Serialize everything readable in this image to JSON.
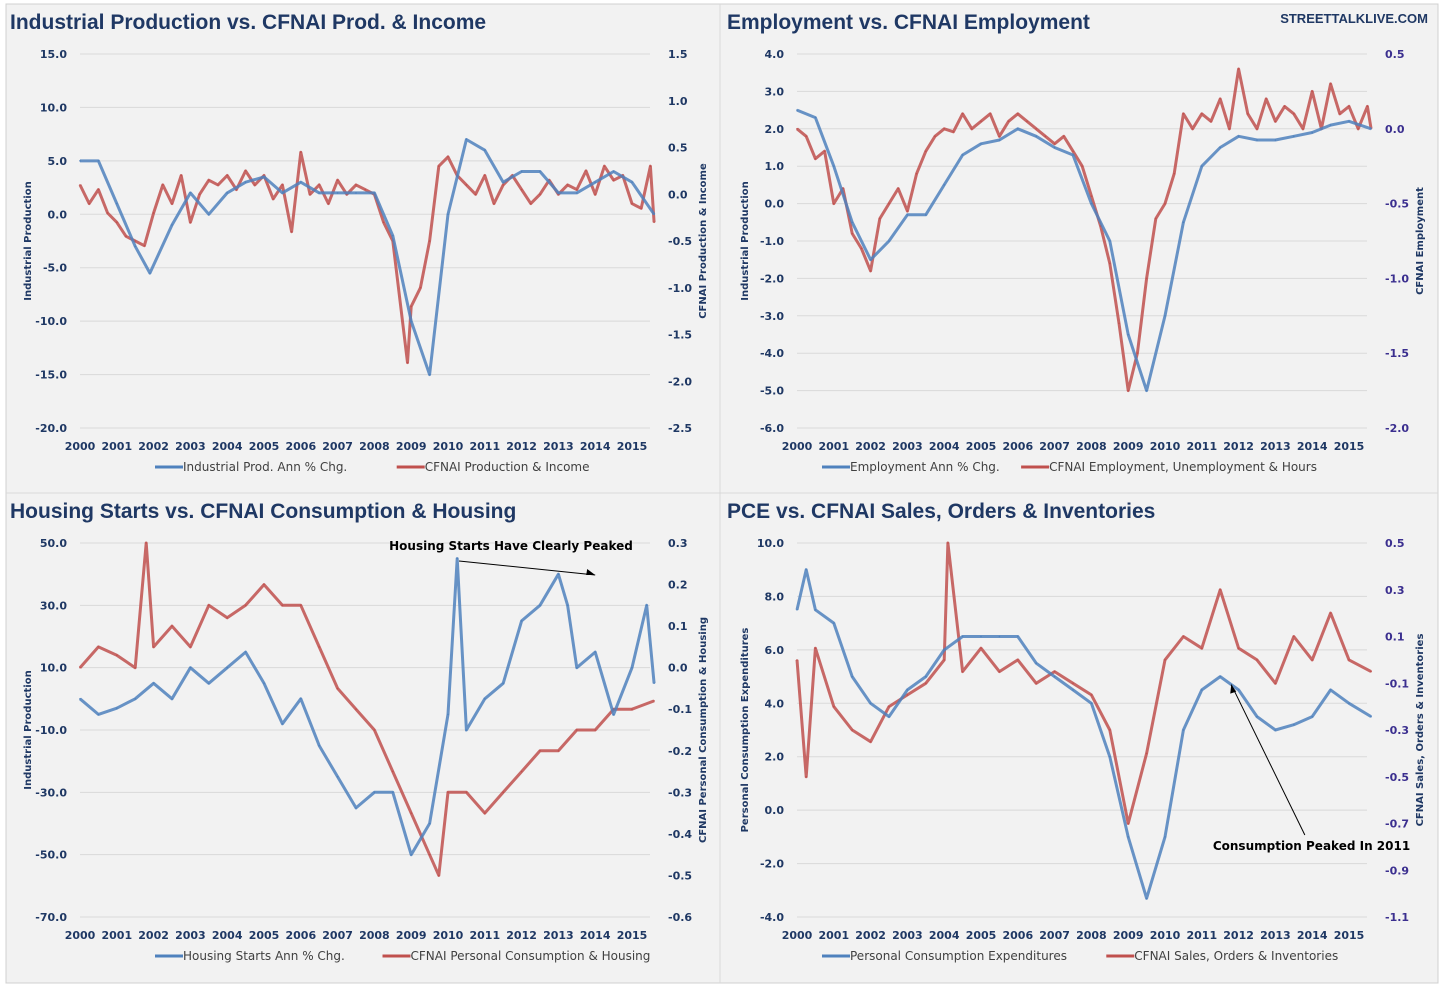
{
  "watermark": "STREETTALKLIVE.COM",
  "colors": {
    "primary_series": "#4f81bd",
    "secondary_series": "#c0504d",
    "background": "#f2f2f2"
  },
  "chart_data": [
    {
      "type": "line",
      "title": "Industrial Production vs. CFNAI Prod. & Income",
      "ylabel": "Industrial Production",
      "ylabel_right": "CFNAI Production & Income",
      "xticks": [
        "2000",
        "2001",
        "2002",
        "2003",
        "2004",
        "2005",
        "2006",
        "2007",
        "2008",
        "2009",
        "2010",
        "2011",
        "2012",
        "2013",
        "2014",
        "2015"
      ],
      "ylim": [
        -20,
        15
      ],
      "yticks": [
        "15.0",
        "10.0",
        "5.0",
        "0.0",
        "-5.0",
        "-10.0",
        "-15.0",
        "-20.0"
      ],
      "ylim_right": [
        -2.5,
        1.5
      ],
      "yticks_right": [
        "1.5",
        "1.0",
        "0.5",
        "0.0",
        "-0.5",
        "-1.0",
        "-1.5",
        "-2.0",
        "-2.5"
      ],
      "grid": true,
      "legend": "bottom",
      "series": [
        {
          "name": "Industrial Prod. Ann % Chg.",
          "axis": "left",
          "x": [
            2000,
            2000.5,
            2001,
            2001.5,
            2001.9,
            2002.5,
            2003,
            2003.5,
            2004,
            2004.5,
            2005,
            2005.5,
            2006,
            2006.5,
            2007,
            2007.5,
            2008,
            2008.5,
            2009,
            2009.5,
            2010,
            2010.5,
            2011,
            2011.5,
            2012,
            2012.5,
            2013,
            2013.5,
            2014,
            2014.5,
            2015,
            2015.6
          ],
          "y": [
            5,
            5,
            1,
            -3,
            -5.5,
            -1,
            2,
            0,
            2,
            3,
            3.5,
            2,
            3,
            2,
            2,
            2,
            2,
            -2,
            -10,
            -15,
            0,
            7,
            6,
            3,
            4,
            4,
            2,
            2,
            3,
            4,
            3,
            0
          ]
        },
        {
          "name": "CFNAI Production & Income",
          "axis": "right",
          "x": [
            2000,
            2000.25,
            2000.5,
            2000.75,
            2001,
            2001.25,
            2001.5,
            2001.75,
            2002,
            2002.25,
            2002.5,
            2002.75,
            2003,
            2003.25,
            2003.5,
            2003.75,
            2004,
            2004.25,
            2004.5,
            2004.75,
            2005,
            2005.25,
            2005.5,
            2005.75,
            2006,
            2006.25,
            2006.5,
            2006.75,
            2007,
            2007.25,
            2007.5,
            2007.75,
            2008,
            2008.25,
            2008.5,
            2008.9,
            2009,
            2009.25,
            2009.5,
            2009.75,
            2010,
            2010.25,
            2010.5,
            2010.75,
            2011,
            2011.25,
            2011.5,
            2011.75,
            2012,
            2012.25,
            2012.5,
            2012.75,
            2013,
            2013.25,
            2013.5,
            2013.75,
            2014,
            2014.25,
            2014.5,
            2014.75,
            2015,
            2015.25,
            2015.5,
            2015.6
          ],
          "y": [
            0.1,
            -0.1,
            0.05,
            -0.2,
            -0.3,
            -0.45,
            -0.5,
            -0.55,
            -0.2,
            0.1,
            -0.1,
            0.2,
            -0.3,
            0,
            0.15,
            0.1,
            0.2,
            0.05,
            0.25,
            0.1,
            0.2,
            -0.05,
            0.1,
            -0.4,
            0.45,
            0,
            0.1,
            -0.1,
            0.15,
            0,
            0.1,
            0.05,
            0,
            -0.3,
            -0.5,
            -1.8,
            -1.2,
            -1.0,
            -0.5,
            0.3,
            0.4,
            0.2,
            0.1,
            0,
            0.2,
            -0.1,
            0.1,
            0.2,
            0.05,
            -0.1,
            0,
            0.15,
            0,
            0.1,
            0.05,
            0.25,
            0,
            0.3,
            0.15,
            0.2,
            -0.1,
            -0.15,
            0.3,
            -0.3
          ]
        }
      ]
    },
    {
      "type": "line",
      "title": "Employment vs. CFNAI Employment",
      "ylabel": "Industrial Production",
      "ylabel_right": "CFNAI Employment",
      "xticks": [
        "2000",
        "2001",
        "2002",
        "2003",
        "2004",
        "2005",
        "2006",
        "2007",
        "2008",
        "2009",
        "2010",
        "2011",
        "2012",
        "2013",
        "2014",
        "2015"
      ],
      "ylim": [
        -6,
        4
      ],
      "yticks": [
        "4.0",
        "3.0",
        "2.0",
        "1.0",
        "0.0",
        "-1.0",
        "-2.0",
        "-3.0",
        "-4.0",
        "-5.0",
        "-6.0"
      ],
      "ylim_right": [
        -2,
        0.5
      ],
      "yticks_right": [
        "0.5",
        "0.0",
        "-0.5",
        "-1.0",
        "-1.5",
        "-2.0"
      ],
      "grid": true,
      "legend": "bottom",
      "series": [
        {
          "name": "Employment Ann % Chg.",
          "axis": "left",
          "x": [
            2000,
            2000.5,
            2001,
            2001.5,
            2002,
            2002.5,
            2003,
            2003.5,
            2004,
            2004.5,
            2005,
            2005.5,
            2006,
            2006.5,
            2007,
            2007.5,
            2008,
            2008.5,
            2009,
            2009.5,
            2010,
            2010.5,
            2011,
            2011.5,
            2012,
            2012.5,
            2013,
            2013.5,
            2014,
            2014.5,
            2015,
            2015.6
          ],
          "y": [
            2.5,
            2.3,
            1,
            -0.5,
            -1.5,
            -1,
            -0.3,
            -0.3,
            0.5,
            1.3,
            1.6,
            1.7,
            2,
            1.8,
            1.5,
            1.3,
            0,
            -1,
            -3.5,
            -5,
            -3,
            -0.5,
            1,
            1.5,
            1.8,
            1.7,
            1.7,
            1.8,
            1.9,
            2.1,
            2.2,
            2.0
          ]
        },
        {
          "name": "CFNAI Employment, Unemployment & Hours",
          "axis": "right",
          "x": [
            2000,
            2000.25,
            2000.5,
            2000.75,
            2001,
            2001.25,
            2001.5,
            2001.75,
            2002,
            2002.25,
            2002.5,
            2002.75,
            2003,
            2003.25,
            2003.5,
            2003.75,
            2004,
            2004.25,
            2004.5,
            2004.75,
            2005,
            2005.25,
            2005.5,
            2005.75,
            2006,
            2006.25,
            2006.5,
            2006.75,
            2007,
            2007.25,
            2007.5,
            2007.75,
            2008,
            2008.25,
            2008.5,
            2008.75,
            2009,
            2009.25,
            2009.5,
            2009.75,
            2010,
            2010.25,
            2010.5,
            2010.75,
            2011,
            2011.25,
            2011.5,
            2011.75,
            2012,
            2012.25,
            2012.5,
            2012.75,
            2013,
            2013.25,
            2013.5,
            2013.75,
            2014,
            2014.25,
            2014.5,
            2014.75,
            2015,
            2015.25,
            2015.5,
            2015.6
          ],
          "y": [
            0,
            -0.05,
            -0.2,
            -0.15,
            -0.5,
            -0.4,
            -0.7,
            -0.8,
            -0.95,
            -0.6,
            -0.5,
            -0.4,
            -0.55,
            -0.3,
            -0.15,
            -0.05,
            0,
            -0.02,
            0.1,
            0,
            0.05,
            0.1,
            -0.05,
            0.05,
            0.1,
            0.05,
            0,
            -0.05,
            -0.1,
            -0.05,
            -0.15,
            -0.25,
            -0.45,
            -0.65,
            -0.9,
            -1.3,
            -1.75,
            -1.5,
            -1.0,
            -0.6,
            -0.5,
            -0.3,
            0.1,
            0,
            0.1,
            0.05,
            0.2,
            0,
            0.4,
            0.1,
            0,
            0.2,
            0.05,
            0.15,
            0.1,
            0,
            0.25,
            0,
            0.3,
            0.1,
            0.15,
            0,
            0.15,
            0
          ]
        }
      ]
    },
    {
      "type": "line",
      "title": "Housing Starts vs. CFNAI Consumption & Housing",
      "ylabel": "Industrial Production",
      "ylabel_right": "CFNAI Personal Consumption & Housing",
      "xticks": [
        "2000",
        "2001",
        "2002",
        "2003",
        "2004",
        "2005",
        "2006",
        "2007",
        "2008",
        "2009",
        "2010",
        "2011",
        "2012",
        "2013",
        "2014",
        "2015"
      ],
      "ylim": [
        -70,
        50
      ],
      "yticks": [
        "50.0",
        "30.0",
        "10.0",
        "-10.0",
        "-30.0",
        "-50.0",
        "-70.0"
      ],
      "ylim_right": [
        -0.6,
        0.3
      ],
      "yticks_right": [
        "0.3",
        "0.2",
        "0.1",
        "0.0",
        "-0.1",
        "-0.2",
        "-0.3",
        "-0.4",
        "-0.5",
        "-0.6"
      ],
      "grid": true,
      "legend": "bottom",
      "annotation": {
        "text": "Housing Starts Have Clearly Peaked",
        "x_from": 2012.6,
        "y_from": 36,
        "x_to": 2014.0,
        "y_to": 32
      },
      "series": [
        {
          "name": "Housing Starts Ann % Chg.",
          "axis": "left",
          "x": [
            2000,
            2000.5,
            2001,
            2001.5,
            2002,
            2002.5,
            2003,
            2003.5,
            2004,
            2004.5,
            2005,
            2005.5,
            2006,
            2006.5,
            2007,
            2007.5,
            2008,
            2008.5,
            2009,
            2009.5,
            2010,
            2010.25,
            2010.5,
            2011,
            2011.5,
            2012,
            2012.5,
            2013,
            2013.25,
            2013.5,
            2014,
            2014.5,
            2015,
            2015.4,
            2015.6
          ],
          "y": [
            0,
            -5,
            -3,
            0,
            5,
            0,
            10,
            5,
            10,
            15,
            5,
            -8,
            0,
            -15,
            -25,
            -35,
            -30,
            -30,
            -50,
            -40,
            -5,
            45,
            -10,
            0,
            5,
            25,
            30,
            40,
            30,
            10,
            15,
            -5,
            10,
            30,
            5
          ]
        },
        {
          "name": "CFNAI Personal Consumption & Housing",
          "axis": "right",
          "x": [
            2000,
            2000.5,
            2001,
            2001.5,
            2001.8,
            2002,
            2002.5,
            2003,
            2003.5,
            2004,
            2004.5,
            2005,
            2005.5,
            2006,
            2006.5,
            2007,
            2007.5,
            2008,
            2008.5,
            2009,
            2009.5,
            2009.75,
            2010,
            2010.5,
            2011,
            2011.5,
            2012,
            2012.5,
            2013,
            2013.5,
            2014,
            2014.5,
            2015,
            2015.6
          ],
          "y": [
            0,
            0.05,
            0.03,
            0,
            0.3,
            0.05,
            0.1,
            0.05,
            0.15,
            0.12,
            0.15,
            0.2,
            0.15,
            0.15,
            0.05,
            -0.05,
            -0.1,
            -0.15,
            -0.25,
            -0.35,
            -0.45,
            -0.5,
            -0.3,
            -0.3,
            -0.35,
            -0.3,
            -0.25,
            -0.2,
            -0.2,
            -0.15,
            -0.15,
            -0.1,
            -0.1,
            -0.08
          ]
        }
      ]
    },
    {
      "type": "line",
      "title": "PCE vs. CFNAI Sales, Orders & Inventories",
      "ylabel": "Personal Consumption Expenditures",
      "ylabel_right": "CFNAI Sales, Orders & Inventories",
      "xticks": [
        "2000",
        "2001",
        "2002",
        "2003",
        "2004",
        "2005",
        "2006",
        "2007",
        "2008",
        "2009",
        "2010",
        "2011",
        "2012",
        "2013",
        "2014",
        "2015"
      ],
      "ylim": [
        -4,
        10
      ],
      "yticks": [
        "10.0",
        "8.0",
        "6.0",
        "4.0",
        "2.0",
        "0.0",
        "-2.0",
        "-4.0"
      ],
      "ylim_right": [
        -1.1,
        0.5
      ],
      "yticks_right": [
        "0.5",
        "0.3",
        "0.1",
        "-0.1",
        "-0.3",
        "-0.5",
        "-0.7",
        "-0.9",
        "-1.1"
      ],
      "grid": true,
      "legend": "bottom",
      "annotation": {
        "text": "Consumption Peaked In 2011",
        "x_from": 2013.3,
        "y_from": -1.2,
        "x_to": 2011.8,
        "y_to": 4.7
      },
      "series": [
        {
          "name": "Personal Consumption Expenditures",
          "axis": "left",
          "x": [
            2000,
            2000.25,
            2000.5,
            2001,
            2001.5,
            2002,
            2002.5,
            2003,
            2003.5,
            2004,
            2004.5,
            2005,
            2005.5,
            2006,
            2006.5,
            2007,
            2007.5,
            2008,
            2008.5,
            2009,
            2009.5,
            2010,
            2010.5,
            2011,
            2011.5,
            2012,
            2012.5,
            2013,
            2013.5,
            2014,
            2014.5,
            2015,
            2015.6
          ],
          "y": [
            7.5,
            9,
            7.5,
            7,
            5,
            4,
            3.5,
            4.5,
            5,
            6,
            6.5,
            6.5,
            6.5,
            6.5,
            5.5,
            5,
            4.5,
            4,
            2,
            -1,
            -3.3,
            -1,
            3,
            4.5,
            5,
            4.5,
            3.5,
            3,
            3.2,
            3.5,
            4.5,
            4,
            3.5
          ]
        },
        {
          "name": "CFNAI Sales, Orders & Inventories",
          "axis": "right",
          "x": [
            2000,
            2000.25,
            2000.5,
            2001,
            2001.5,
            2002,
            2002.5,
            2003,
            2003.5,
            2004,
            2004.1,
            2004.5,
            2005,
            2005.5,
            2006,
            2006.5,
            2007,
            2007.5,
            2008,
            2008.5,
            2009,
            2009.5,
            2010,
            2010.5,
            2011,
            2011.5,
            2012,
            2012.5,
            2013,
            2013.5,
            2014,
            2014.5,
            2015,
            2015.6
          ],
          "y": [
            0,
            -0.5,
            0.05,
            -0.2,
            -0.3,
            -0.35,
            -0.2,
            -0.15,
            -0.1,
            0,
            0.5,
            -0.05,
            0.05,
            -0.05,
            0,
            -0.1,
            -0.05,
            -0.1,
            -0.15,
            -0.3,
            -0.7,
            -0.4,
            0,
            0.1,
            0.05,
            0.3,
            0.05,
            0,
            -0.1,
            0.1,
            0,
            0.2,
            0,
            -0.05
          ]
        }
      ]
    }
  ]
}
